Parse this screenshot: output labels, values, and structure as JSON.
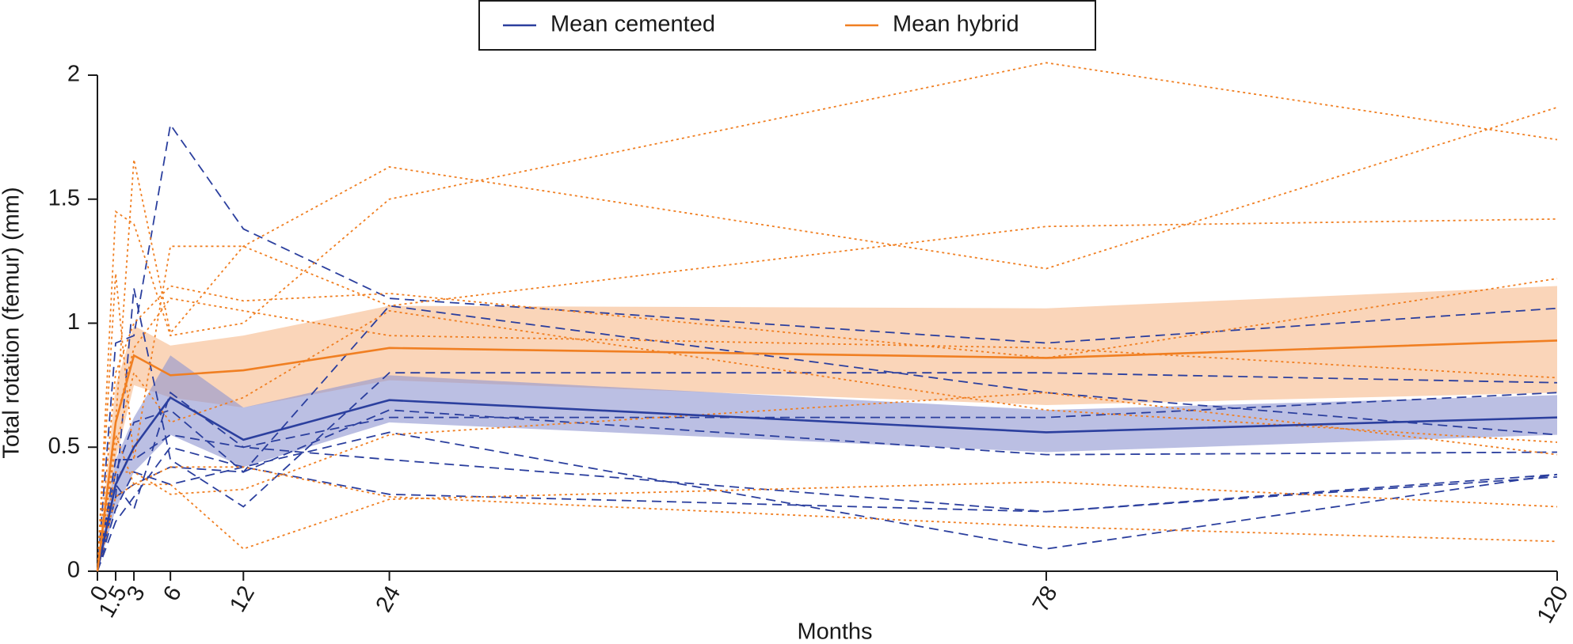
{
  "chart_data": {
    "type": "line",
    "x_label": "Months",
    "y_label": "Total rotation (femur) (mm)",
    "x": [
      0,
      1.5,
      3,
      6,
      12,
      24,
      78,
      120
    ],
    "xlim": [
      0,
      120
    ],
    "xticks": [
      0,
      1.5,
      3,
      6,
      12,
      24,
      78,
      120
    ],
    "ylim": [
      0,
      2
    ],
    "yticks": [
      0,
      0.5,
      1,
      1.5,
      2
    ],
    "legend": "top",
    "series": [
      {
        "name": "Mean cemented",
        "color": "#2b3f9e",
        "dash": "solid",
        "values": [
          0,
          0.35,
          0.5,
          0.7,
          0.53,
          0.69,
          0.56,
          0.62
        ],
        "band": {
          "color": "#8e94d0",
          "lower": [
            0,
            0.25,
            0.4,
            0.55,
            0.42,
            0.6,
            0.48,
            0.55
          ],
          "upper": [
            0,
            0.45,
            0.62,
            0.87,
            0.66,
            0.79,
            0.65,
            0.71
          ]
        }
      },
      {
        "name": "Mean hybrid",
        "color": "#f07f22",
        "dash": "solid",
        "values": [
          0,
          0.6,
          0.87,
          0.79,
          0.81,
          0.9,
          0.86,
          0.93
        ],
        "band": {
          "color": "#f7b98a",
          "lower": [
            0,
            0.45,
            0.75,
            0.7,
            0.66,
            0.77,
            0.67,
            0.72
          ],
          "upper": [
            0,
            0.75,
            0.99,
            0.91,
            0.95,
            1.07,
            1.06,
            1.15
          ]
        }
      },
      {
        "color": "#2b3f9e",
        "dash": "dashed",
        "values": [
          0,
          0.92,
          0.95,
          1.8,
          1.38,
          1.1,
          0.92,
          1.06
        ]
      },
      {
        "color": "#2b3f9e",
        "dash": "dashed",
        "values": [
          0,
          0.3,
          1.14,
          0.45,
          0.26,
          0.8,
          0.8,
          0.76
        ]
      },
      {
        "color": "#2b3f9e",
        "dash": "dashed",
        "values": [
          0,
          0.35,
          0.25,
          0.72,
          0.5,
          0.62,
          0.62,
          0.72
        ]
      },
      {
        "color": "#2b3f9e",
        "dash": "dashed",
        "values": [
          0,
          0.4,
          0.6,
          0.65,
          0.4,
          1.07,
          0.72,
          0.55
        ]
      },
      {
        "color": "#2b3f9e",
        "dash": "dashed",
        "values": [
          0,
          0.2,
          0.3,
          0.5,
          0.42,
          0.31,
          0.24,
          0.38
        ]
      },
      {
        "color": "#2b3f9e",
        "dash": "dashed",
        "values": [
          0,
          0.3,
          0.35,
          0.42,
          0.4,
          0.65,
          0.47,
          0.48
        ]
      },
      {
        "color": "#2b3f9e",
        "dash": "dashed",
        "values": [
          0,
          0.25,
          0.4,
          0.35,
          0.42,
          0.56,
          0.09,
          0.39
        ]
      },
      {
        "color": "#2b3f9e",
        "dash": "dashed",
        "values": [
          0,
          0.45,
          0.45,
          0.55,
          0.5,
          0.45,
          0.24,
          0.39
        ]
      },
      {
        "color": "#f07f22",
        "dash": "dotted",
        "values": [
          0,
          1.45,
          1.4,
          0.95,
          1.0,
          1.5,
          2.05,
          1.74
        ]
      },
      {
        "color": "#f07f22",
        "dash": "dotted",
        "values": [
          0,
          0.6,
          1.66,
          0.96,
          1.31,
          1.63,
          1.22,
          1.87
        ]
      },
      {
        "color": "#f07f22",
        "dash": "dotted",
        "values": [
          0,
          1.2,
          0.45,
          1.31,
          1.31,
          1.07,
          1.39,
          1.42
        ]
      },
      {
        "color": "#f07f22",
        "dash": "dotted",
        "values": [
          0,
          0.8,
          1.0,
          1.15,
          1.09,
          1.12,
          0.86,
          1.18
        ]
      },
      {
        "color": "#f07f22",
        "dash": "dotted",
        "values": [
          0,
          0.6,
          0.9,
          1.1,
          1.05,
          0.95,
          0.9,
          0.78
        ]
      },
      {
        "color": "#f07f22",
        "dash": "dotted",
        "values": [
          0,
          0.5,
          0.8,
          0.6,
          0.7,
          1.05,
          0.65,
          0.52
        ]
      },
      {
        "color": "#f07f22",
        "dash": "dotted",
        "values": [
          0,
          0.4,
          0.4,
          0.31,
          0.33,
          0.55,
          0.72,
          0.47
        ]
      },
      {
        "color": "#f07f22",
        "dash": "dotted",
        "values": [
          0,
          0.55,
          0.35,
          0.35,
          0.09,
          0.29,
          0.36,
          0.26
        ]
      },
      {
        "color": "#f07f22",
        "dash": "dotted",
        "values": [
          0,
          0.3,
          0.35,
          0.42,
          0.42,
          0.3,
          0.18,
          0.12
        ]
      }
    ]
  }
}
